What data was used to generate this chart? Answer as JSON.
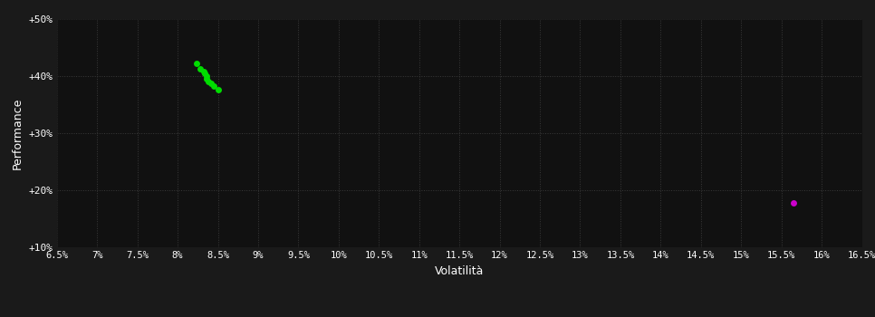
{
  "background_color": "#1a1a1a",
  "plot_bg_color": "#111111",
  "grid_color": "#3a3a3a",
  "text_color": "#ffffff",
  "xlabel": "Volatilità",
  "ylabel": "Performance",
  "xlim": [
    0.065,
    0.165
  ],
  "ylim": [
    0.1,
    0.5
  ],
  "xticks": [
    0.065,
    0.07,
    0.075,
    0.08,
    0.085,
    0.09,
    0.095,
    0.1,
    0.105,
    0.11,
    0.115,
    0.12,
    0.125,
    0.13,
    0.135,
    0.14,
    0.145,
    0.15,
    0.155,
    0.16,
    0.165
  ],
  "xtick_labels": [
    "6.5%",
    "7%",
    "7.5%",
    "8%",
    "8.5%",
    "9%",
    "9.5%",
    "10%",
    "10.5%",
    "11%",
    "11.5%",
    "12%",
    "12.5%",
    "13%",
    "13.5%",
    "14%",
    "14.5%",
    "15%",
    "15.5%",
    "16%",
    "16.5%"
  ],
  "yticks": [
    0.1,
    0.2,
    0.3,
    0.4,
    0.5
  ],
  "ytick_labels": [
    "+10%",
    "+20%",
    "+30%",
    "+40%",
    "+50%"
  ],
  "green_points": [
    [
      0.0823,
      0.423
    ],
    [
      0.0828,
      0.413
    ],
    [
      0.0832,
      0.408
    ],
    [
      0.0834,
      0.404
    ],
    [
      0.0836,
      0.4
    ],
    [
      0.0836,
      0.396
    ],
    [
      0.0838,
      0.39
    ],
    [
      0.0842,
      0.387
    ],
    [
      0.0845,
      0.383
    ],
    [
      0.085,
      0.376
    ]
  ],
  "green_color": "#00dd00",
  "magenta_point": [
    0.1565,
    0.178
  ],
  "magenta_color": "#cc00cc",
  "marker_size": 5
}
